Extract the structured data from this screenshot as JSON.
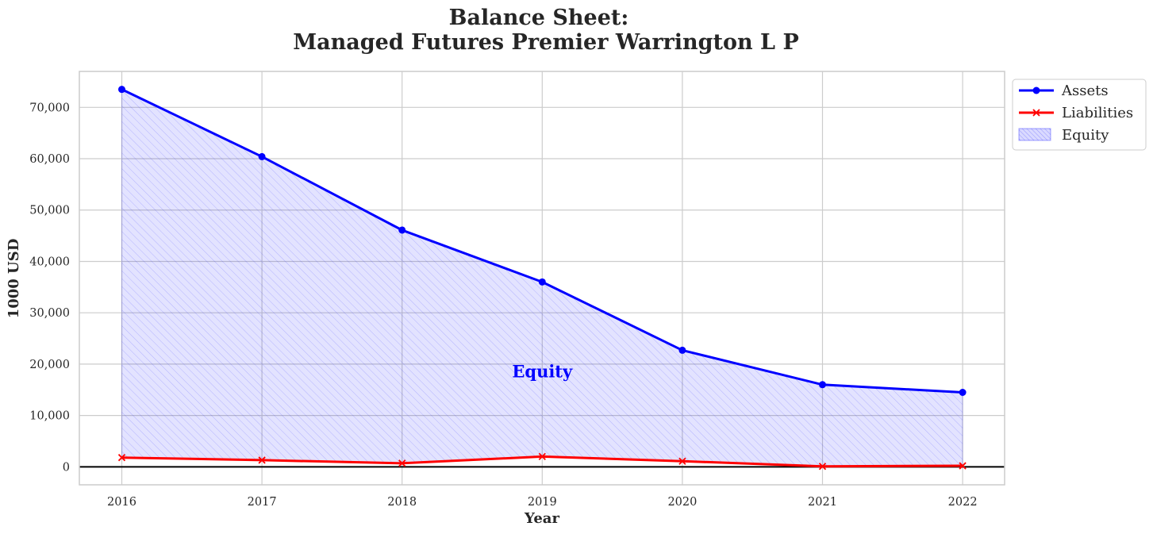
{
  "chart_data": {
    "type": "line",
    "title_line1": "Balance Sheet:",
    "title_line2": "Managed Futures Premier Warrington L P",
    "xlabel": "Year",
    "ylabel": "1000 USD",
    "categories": [
      "2016",
      "2017",
      "2018",
      "2019",
      "2020",
      "2021",
      "2022"
    ],
    "yticks": [
      0,
      10000,
      20000,
      30000,
      40000,
      50000,
      60000,
      70000
    ],
    "ytick_labels": [
      "0",
      "10,000",
      "20,000",
      "30,000",
      "40,000",
      "50,000",
      "60,000",
      "70,000"
    ],
    "ylim": [
      -3500,
      77000
    ],
    "grid": true,
    "legend_position": "upper-right-outside",
    "series": [
      {
        "name": "Assets",
        "values": [
          73500,
          60400,
          46100,
          36000,
          22700,
          16000,
          14500
        ],
        "color": "#0000ff",
        "marker": "circle"
      },
      {
        "name": "Liabilities",
        "values": [
          1800,
          1300,
          700,
          2000,
          1100,
          100,
          200
        ],
        "color": "#ff0000",
        "marker": "x"
      }
    ],
    "fill": {
      "name": "Equity",
      "between": [
        "Liabilities",
        "Assets"
      ],
      "color": "#0000ff",
      "hatch": "////"
    },
    "annotation": {
      "text": "Equity",
      "x": "2019",
      "y": 18500,
      "color": "#0000ff"
    },
    "zero_line_color": "#000000"
  }
}
